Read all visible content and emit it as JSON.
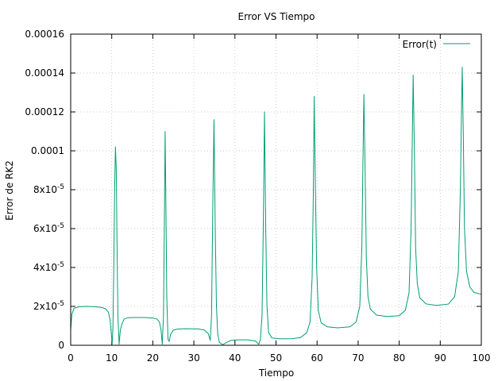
{
  "chart_data": {
    "type": "line",
    "title": "Error VS Tiempo",
    "xlabel": "Tiempo",
    "ylabel": "Error de RK2",
    "xlim": [
      0,
      100
    ],
    "ylim": [
      0,
      0.00016
    ],
    "grid": true,
    "legend_position": "top-right",
    "x_ticks": [
      {
        "value": 0,
        "label": "0"
      },
      {
        "value": 10,
        "label": "10"
      },
      {
        "value": 20,
        "label": "20"
      },
      {
        "value": 30,
        "label": "30"
      },
      {
        "value": 40,
        "label": "40"
      },
      {
        "value": 50,
        "label": "50"
      },
      {
        "value": 60,
        "label": "60"
      },
      {
        "value": 70,
        "label": "70"
      },
      {
        "value": 80,
        "label": "80"
      },
      {
        "value": 90,
        "label": "90"
      },
      {
        "value": 100,
        "label": "100"
      }
    ],
    "y_ticks": [
      {
        "value": 0,
        "label": "0"
      },
      {
        "value": 2e-05,
        "label": "2x10",
        "exp": "-5"
      },
      {
        "value": 4e-05,
        "label": "4x10",
        "exp": "-5"
      },
      {
        "value": 6e-05,
        "label": "6x10",
        "exp": "-5"
      },
      {
        "value": 8e-05,
        "label": "8x10",
        "exp": "-5"
      },
      {
        "value": 0.0001,
        "label": "0.0001"
      },
      {
        "value": 0.00012,
        "label": "0.00012"
      },
      {
        "value": 0.00014,
        "label": "0.00014"
      },
      {
        "value": 0.00016,
        "label": "0.00016"
      }
    ],
    "series": [
      {
        "name": "Error(t)",
        "color": "#009e73",
        "points": [
          [
            0.0,
            8e-06
          ],
          [
            0.3,
            1.6e-05
          ],
          [
            0.8,
            1.9e-05
          ],
          [
            2.0,
            1.98e-05
          ],
          [
            4.0,
            2e-05
          ],
          [
            6.0,
            1.98e-05
          ],
          [
            7.5,
            1.95e-05
          ],
          [
            8.5,
            1.88e-05
          ],
          [
            9.2,
            1.7e-05
          ],
          [
            9.6,
            1.3e-05
          ],
          [
            9.9,
            6e-06
          ],
          [
            10.1,
            5e-07
          ],
          [
            10.3,
            1e-05
          ],
          [
            10.5,
            4e-05
          ],
          [
            10.7,
            8e-05
          ],
          [
            10.9,
            0.000102
          ],
          [
            11.1,
            9e-05
          ],
          [
            11.3,
            5e-05
          ],
          [
            11.5,
            1.5e-05
          ],
          [
            11.8,
            5e-07
          ],
          [
            12.1,
            8e-06
          ],
          [
            12.5,
            1.1e-05
          ],
          [
            13.0,
            1.35e-05
          ],
          [
            14.0,
            1.42e-05
          ],
          [
            16.0,
            1.43e-05
          ],
          [
            18.0,
            1.43e-05
          ],
          [
            20.0,
            1.4e-05
          ],
          [
            21.0,
            1.35e-05
          ],
          [
            21.6,
            1.2e-05
          ],
          [
            22.0,
            8e-06
          ],
          [
            22.3,
            5e-07
          ],
          [
            22.6,
            1.5e-05
          ],
          [
            22.8,
            6e-05
          ],
          [
            23.0,
            0.00011
          ],
          [
            23.2,
            7e-05
          ],
          [
            23.4,
            2.5e-05
          ],
          [
            23.7,
            3e-06
          ],
          [
            24.0,
            2e-06
          ],
          [
            24.3,
            5.5e-06
          ],
          [
            25.0,
            7.8e-06
          ],
          [
            26.0,
            8.3e-06
          ],
          [
            28.0,
            8.5e-06
          ],
          [
            31.0,
            8.4e-06
          ],
          [
            32.5,
            7.9e-06
          ],
          [
            33.5,
            6e-06
          ],
          [
            34.0,
            2.5e-06
          ],
          [
            34.3,
            1.5e-05
          ],
          [
            34.6,
            7e-05
          ],
          [
            34.9,
            0.000116
          ],
          [
            35.2,
            6e-05
          ],
          [
            35.5,
            2e-05
          ],
          [
            35.8,
            6e-06
          ],
          [
            36.2,
            1.5e-06
          ],
          [
            37.0,
            3e-07
          ],
          [
            38.0,
            1.5e-06
          ],
          [
            39.0,
            2.5e-06
          ],
          [
            41.0,
            2.8e-06
          ],
          [
            43.0,
            2.8e-06
          ],
          [
            45.0,
            2.2e-06
          ],
          [
            45.8,
            5e-07
          ],
          [
            46.2,
            3e-06
          ],
          [
            46.6,
            1.5e-05
          ],
          [
            46.9,
            6e-05
          ],
          [
            47.2,
            0.00012
          ],
          [
            47.5,
            6e-05
          ],
          [
            47.8,
            2e-05
          ],
          [
            48.2,
            6.5e-06
          ],
          [
            49.0,
            3.8e-06
          ],
          [
            51.0,
            3.3e-06
          ],
          [
            54.0,
            3.4e-06
          ],
          [
            56.0,
            4e-06
          ],
          [
            57.5,
            6.5e-06
          ],
          [
            58.3,
            1.2e-05
          ],
          [
            58.8,
            3.5e-05
          ],
          [
            59.1,
            8e-05
          ],
          [
            59.3,
            0.000128
          ],
          [
            59.6,
            8e-05
          ],
          [
            59.9,
            4e-05
          ],
          [
            60.3,
            1.8e-05
          ],
          [
            61.0,
            1.15e-05
          ],
          [
            62.5,
            9.5e-06
          ],
          [
            65.0,
            9e-06
          ],
          [
            68.0,
            9.5e-06
          ],
          [
            69.5,
            1.2e-05
          ],
          [
            70.4,
            2e-05
          ],
          [
            70.9,
            5e-05
          ],
          [
            71.2,
            9.8e-05
          ],
          [
            71.4,
            0.000129
          ],
          [
            71.7,
            9e-05
          ],
          [
            72.0,
            4.5e-05
          ],
          [
            72.4,
            2.5e-05
          ],
          [
            73.0,
            1.85e-05
          ],
          [
            74.5,
            1.55e-05
          ],
          [
            77.0,
            1.48e-05
          ],
          [
            80.0,
            1.52e-05
          ],
          [
            81.5,
            1.8e-05
          ],
          [
            82.4,
            2.7e-05
          ],
          [
            82.9,
            6e-05
          ],
          [
            83.2,
            0.000108
          ],
          [
            83.4,
            0.000139
          ],
          [
            83.7,
            0.0001
          ],
          [
            84.0,
            5e-05
          ],
          [
            84.4,
            3.2e-05
          ],
          [
            85.0,
            2.45e-05
          ],
          [
            86.5,
            2.13e-05
          ],
          [
            89.0,
            2.05e-05
          ],
          [
            92.0,
            2.12e-05
          ],
          [
            93.5,
            2.5e-05
          ],
          [
            94.4,
            3.8e-05
          ],
          [
            94.9,
            8e-05
          ],
          [
            95.2,
            0.000125
          ],
          [
            95.35,
            0.000143
          ],
          [
            95.6,
            0.00011
          ],
          [
            95.9,
            6e-05
          ],
          [
            96.4,
            3.8e-05
          ],
          [
            97.2,
            3e-05
          ],
          [
            98.2,
            2.72e-05
          ],
          [
            100.0,
            2.62e-05
          ]
        ]
      }
    ]
  }
}
